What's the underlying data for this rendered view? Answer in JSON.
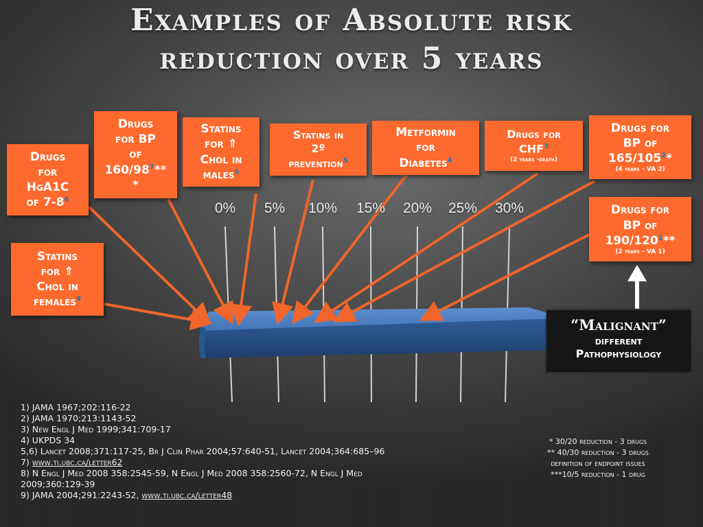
{
  "title": {
    "line1": "Examples of Absolute risk",
    "line2": "reduction over 5 years"
  },
  "chart_data": {
    "type": "bar",
    "x_ticks": [
      "0%",
      "5%",
      "10%",
      "15%",
      "20%",
      "25%",
      "30%"
    ],
    "xlim": [
      0,
      30
    ],
    "bar_value_range": [
      0,
      30
    ],
    "annotations": [
      {
        "id": "statins-females",
        "lines": [
          "Statins",
          "for ⇑",
          "Chol in",
          "females"
        ],
        "ref": "9"
      },
      {
        "id": "hga1c",
        "lines": [
          "Drugs",
          "for",
          "HgA1C",
          "of 7-8"
        ],
        "ref": "6"
      },
      {
        "id": "bp-160",
        "lines": [
          "Drugs",
          "for BP",
          "of",
          "160/98",
          "*"
        ],
        "ref": "7",
        "ref_line": 3,
        "suffix": "**"
      },
      {
        "id": "statins-males",
        "lines": [
          "Statins",
          "for ⇑",
          "Chol in",
          "males"
        ],
        "ref": "6"
      },
      {
        "id": "statins-2nd",
        "lines": [
          "Statins in",
          "2º",
          "prevention"
        ],
        "ref": "5"
      },
      {
        "id": "metformin",
        "lines": [
          "Metformin",
          "for",
          "Diabetes"
        ],
        "ref": "4"
      },
      {
        "id": "chf",
        "lines": [
          "Drugs for",
          "CHF"
        ],
        "ref": "3",
        "small": "(2 years -death)"
      },
      {
        "id": "bp-165",
        "lines": [
          "Drugs for",
          "BP of",
          "165/105"
        ],
        "ref": "2",
        "suffix": "*",
        "small": "(4 years - VA 2)"
      },
      {
        "id": "bp-190",
        "lines": [
          "Drugs for",
          "BP of",
          "190/120"
        ],
        "ref": "1",
        "suffix": "**",
        "small": "(2 years - VA 1)"
      }
    ]
  },
  "malignant": {
    "line1": "“Malignant”",
    "line2": "different",
    "line3": "Pathophysiology"
  },
  "references": [
    "1) JAMA 1967;202:116-22",
    "2) JAMA 1970;213:1143-52",
    "3) New Engl J Med 1999;341:709-17",
    "4) UKPDS 34",
    "5,6) Lancet 2008;371:117-25, Br J Clin Phar 2004;57:640-51, Lancet 2004;364:685–96",
    "7) www.ti.ubc.ca/letter62",
    "8) N Engl J Med 2008 358:2545-59, N Engl J Med 2008 358:2560-72, N Engl J Med 2009;360:129-39",
    "9) JAMA 2004;291:2243-52, www.ti.ubc.ca/letter48"
  ],
  "notes": [
    "* 30/20 reduction - 3 drugs",
    "** 40/30 reduction - 3 drugs",
    "definition of endpoint issues",
    "***10/5 reduction - 1 drug"
  ],
  "colors": {
    "box": "#fe6a2e",
    "arrow": "#f0652a",
    "bar": "#3a6fb0",
    "ref_sup": "#1d7ab8",
    "malignant_bg": "#161616"
  }
}
